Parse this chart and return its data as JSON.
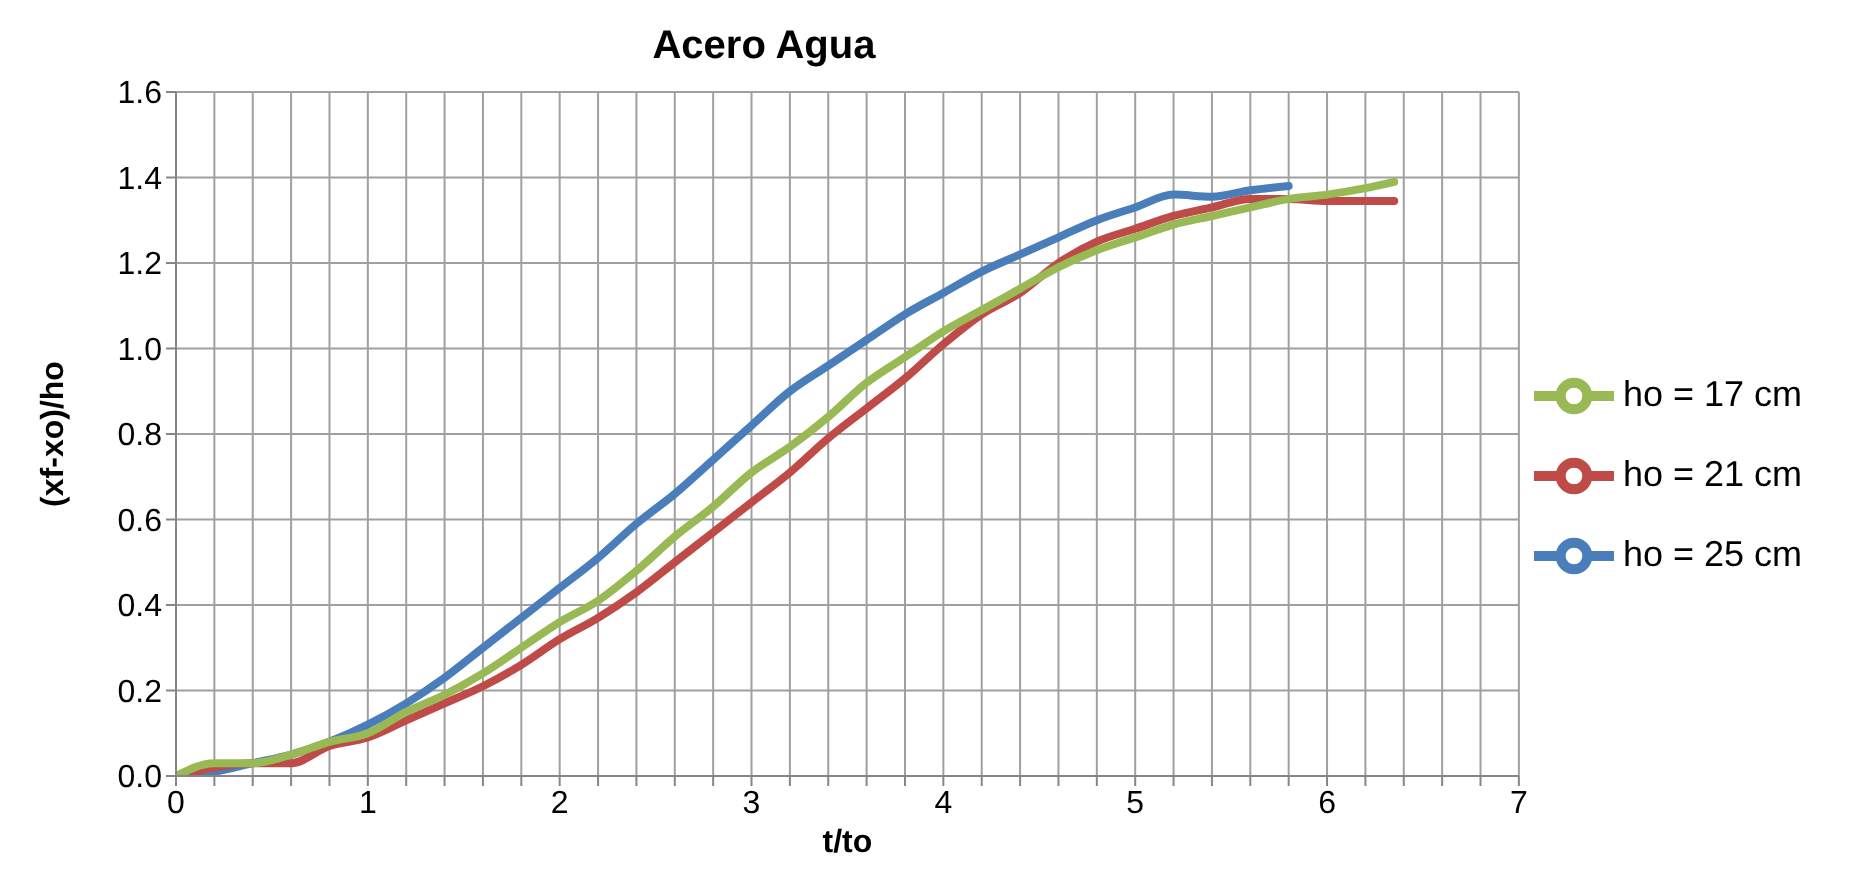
{
  "chart_data": {
    "type": "line",
    "title": "Acero Agua",
    "xlabel": "t/to",
    "ylabel": "(xf-xo)/ho",
    "xlim": [
      0,
      7
    ],
    "ylim": [
      0,
      1.6
    ],
    "xticks": [
      0,
      {
        "value": 0.2,
        "label": null
      },
      {
        "value": 0.4,
        "label": null
      },
      {
        "value": 0.6,
        "label": null
      },
      {
        "value": 0.8,
        "label": null
      },
      1,
      {
        "value": 1.2,
        "label": null
      },
      {
        "value": 1.4,
        "label": null
      },
      {
        "value": 1.6,
        "label": null
      },
      {
        "value": 1.8,
        "label": null
      },
      2,
      {
        "value": 2.2,
        "label": null
      },
      {
        "value": 2.4,
        "label": null
      },
      {
        "value": 2.6,
        "label": null
      },
      {
        "value": 2.8,
        "label": null
      },
      3,
      {
        "value": 3.2,
        "label": null
      },
      {
        "value": 3.4,
        "label": null
      },
      {
        "value": 3.6,
        "label": null
      },
      {
        "value": 3.8,
        "label": null
      },
      4,
      {
        "value": 4.2,
        "label": null
      },
      {
        "value": 4.4,
        "label": null
      },
      {
        "value": 4.6,
        "label": null
      },
      {
        "value": 4.8,
        "label": null
      },
      5,
      {
        "value": 5.2,
        "label": null
      },
      {
        "value": 5.4,
        "label": null
      },
      {
        "value": 5.6,
        "label": null
      },
      {
        "value": 5.8,
        "label": null
      },
      6,
      {
        "value": 6.2,
        "label": null
      },
      {
        "value": 6.4,
        "label": null
      },
      {
        "value": 6.6,
        "label": null
      },
      {
        "value": 6.8,
        "label": null
      },
      7
    ],
    "yticks": [
      {
        "value": 0,
        "label": "0.0"
      },
      0.2,
      0.4,
      0.6,
      0.8,
      {
        "value": 1,
        "label": "1.0"
      },
      1.2,
      1.4,
      1.6
    ],
    "grid": true,
    "legend": "right",
    "marker": "none",
    "line_style": "solid",
    "series": [
      {
        "name": "ho = 25 cm",
        "color": "#4a7ebb",
        "x": [
          0,
          0.2,
          0.4,
          0.6,
          0.8,
          1,
          1.2,
          1.4,
          1.6,
          1.8,
          2,
          2.2,
          2.4,
          2.6,
          2.8,
          3,
          3.2,
          3.4,
          3.6,
          3.8,
          4,
          4.2,
          4.4,
          4.6,
          4.8,
          5,
          5.2,
          5.4,
          5.6,
          5.8
        ],
        "values": [
          0,
          0.01,
          0.03,
          0.05,
          0.08,
          0.12,
          0.17,
          0.23,
          0.3,
          0.37,
          0.44,
          0.51,
          0.59,
          0.66,
          0.74,
          0.82,
          0.9,
          0.96,
          1.02,
          1.08,
          1.13,
          1.18,
          1.22,
          1.26,
          1.3,
          1.33,
          1.36,
          1.355,
          1.37,
          1.38
        ]
      },
      {
        "name": "ho = 21 cm",
        "color": "#be4b48",
        "x": [
          0,
          0.2,
          0.4,
          0.6,
          0.8,
          1,
          1.2,
          1.4,
          1.6,
          1.8,
          2,
          2.2,
          2.4,
          2.6,
          2.8,
          3,
          3.2,
          3.4,
          3.6,
          3.8,
          4,
          4.2,
          4.4,
          4.6,
          4.8,
          5,
          5.2,
          5.4,
          5.6,
          5.8,
          6,
          6.35
        ],
        "values": [
          0,
          0.02,
          0.03,
          0.03,
          0.07,
          0.09,
          0.13,
          0.17,
          0.21,
          0.26,
          0.32,
          0.37,
          0.43,
          0.5,
          0.57,
          0.64,
          0.71,
          0.79,
          0.86,
          0.93,
          1.01,
          1.08,
          1.13,
          1.2,
          1.25,
          1.28,
          1.31,
          1.33,
          1.35,
          1.35,
          1.345,
          1.345
        ]
      },
      {
        "name": "ho = 17 cm",
        "color": "#98b954",
        "x": [
          0,
          0.2,
          0.4,
          0.6,
          0.8,
          1,
          1.2,
          1.4,
          1.6,
          1.8,
          2,
          2.2,
          2.4,
          2.6,
          2.8,
          3,
          3.2,
          3.4,
          3.6,
          3.8,
          4,
          4.2,
          4.4,
          4.6,
          4.8,
          5,
          5.2,
          5.4,
          5.6,
          5.8,
          6,
          6.2,
          6.35
        ],
        "values": [
          0,
          0.03,
          0.03,
          0.05,
          0.08,
          0.1,
          0.15,
          0.19,
          0.24,
          0.3,
          0.36,
          0.41,
          0.48,
          0.56,
          0.63,
          0.71,
          0.77,
          0.84,
          0.92,
          0.98,
          1.04,
          1.09,
          1.14,
          1.19,
          1.23,
          1.26,
          1.29,
          1.31,
          1.33,
          1.35,
          1.36,
          1.375,
          1.39
        ]
      }
    ]
  }
}
